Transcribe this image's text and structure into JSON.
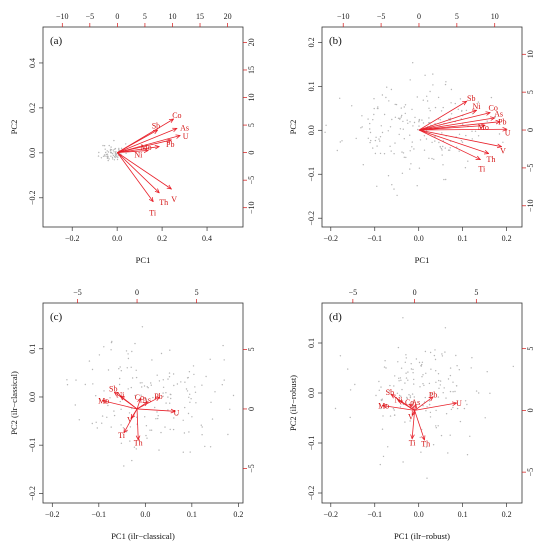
{
  "colors": {
    "arrow": "#e8212b",
    "points": "#b5b5b5",
    "frame": "#333333"
  },
  "chart_data": [
    {
      "type": "scatter",
      "panel_label": "(a)",
      "xlabel": "PC1",
      "ylabel": "PC2",
      "xlim": [
        -0.33,
        0.56
      ],
      "ylim": [
        -0.33,
        0.56
      ],
      "xticks": [
        -0.2,
        0.0,
        0.2,
        0.4
      ],
      "yticks": [
        -0.2,
        0.0,
        0.2,
        0.4
      ],
      "xtick_labels": [
        "−0.2",
        "0.0",
        "0.2",
        "0.4"
      ],
      "ytick_labels": [
        "−0.2",
        "0.0",
        "0.2",
        "0.4"
      ],
      "top_lim": [
        -13.5,
        22.8
      ],
      "right_lim": [
        -13.5,
        22.8
      ],
      "top_ticks": [
        -10,
        -5,
        0,
        5,
        10,
        15,
        20
      ],
      "right_ticks": [
        -10,
        -5,
        0,
        5,
        10,
        15,
        20
      ],
      "top_tick_labels": [
        "−10",
        "−5",
        "0",
        "5",
        "10",
        "15",
        "20"
      ],
      "right_tick_labels": [
        "−10",
        "−5",
        "0",
        "5",
        "10",
        "15",
        "20"
      ],
      "point_cloud": {
        "center": [
          -0.02,
          0.0
        ],
        "spread": [
          0.025,
          0.02
        ],
        "n": 70,
        "seed": 11
      },
      "loadings": [
        {
          "name": "Co",
          "x": 10.2,
          "y": 6.1,
          "lx": 10.8,
          "ly": 6.8
        },
        {
          "name": "As",
          "x": 10.8,
          "y": 4.4,
          "lx": 12.2,
          "ly": 4.6
        },
        {
          "name": "U",
          "x": 11.4,
          "y": 3.1,
          "lx": 12.4,
          "ly": 3.0
        },
        {
          "name": "Sb",
          "x": 7.3,
          "y": 4.1,
          "lx": 7.0,
          "ly": 4.9
        },
        {
          "name": "Pb",
          "x": 9.8,
          "y": 2.3,
          "lx": 9.6,
          "ly": 1.6
        },
        {
          "name": "Mo",
          "x": 7.6,
          "y": 1.1,
          "lx": 5.2,
          "ly": 1.0
        },
        {
          "name": "Ni",
          "x": 5.6,
          "y": 0.4,
          "lx": 3.8,
          "ly": -0.3
        },
        {
          "name": "Th",
          "x": 7.6,
          "y": -7.3,
          "lx": 8.4,
          "ly": -9.0
        },
        {
          "name": "V",
          "x": 9.8,
          "y": -6.6,
          "lx": 10.3,
          "ly": -8.4
        },
        {
          "name": "Ti",
          "x": 6.5,
          "y": -8.9,
          "lx": 6.4,
          "ly": -10.9
        }
      ]
    },
    {
      "type": "scatter",
      "panel_label": "(b)",
      "xlabel": "PC1",
      "ylabel": "PC2",
      "xlim": [
        -0.22,
        0.235
      ],
      "ylim": [
        -0.22,
        0.235
      ],
      "xticks": [
        -0.2,
        -0.1,
        0.0,
        0.1,
        0.2
      ],
      "yticks": [
        -0.2,
        -0.1,
        0.0,
        0.1,
        0.2
      ],
      "xtick_labels": [
        "−0.2",
        "−0.1",
        "0.0",
        "0.1",
        "0.2"
      ],
      "ytick_labels": [
        "−0.2",
        "−0.1",
        "0.0",
        "0.1",
        "0.2"
      ],
      "top_lim": [
        -12.8,
        13.6
      ],
      "right_lim": [
        -12.8,
        13.6
      ],
      "top_ticks": [
        -10,
        -5,
        0,
        5,
        10
      ],
      "right_ticks": [
        -10,
        -5,
        0,
        5,
        10
      ],
      "top_tick_labels": [
        "−10",
        "−5",
        "0",
        "5",
        "10"
      ],
      "right_tick_labels": [
        "−10",
        "−5",
        "0",
        "5",
        "10"
      ],
      "point_cloud": {
        "center": [
          -0.01,
          0.0
        ],
        "spread": [
          0.08,
          0.05
        ],
        "n": 200,
        "seed": 23
      },
      "loadings": [
        {
          "name": "Sb",
          "x": 6.3,
          "y": 3.8,
          "lx": 6.9,
          "ly": 4.2
        },
        {
          "name": "Ni",
          "x": 7.6,
          "y": 2.6,
          "lx": 7.6,
          "ly": 3.2
        },
        {
          "name": "Co",
          "x": 9.4,
          "y": 2.3,
          "lx": 9.8,
          "ly": 3.0
        },
        {
          "name": "As",
          "x": 10.0,
          "y": 1.6,
          "lx": 10.5,
          "ly": 2.2
        },
        {
          "name": "Pb",
          "x": 10.7,
          "y": 1.1,
          "lx": 11.0,
          "ly": 1.1
        },
        {
          "name": "Mo",
          "x": 8.7,
          "y": 0.6,
          "lx": 8.5,
          "ly": 0.4
        },
        {
          "name": "U",
          "x": 11.6,
          "y": 0.1,
          "lx": 11.7,
          "ly": -0.3
        },
        {
          "name": "V",
          "x": 10.9,
          "y": -2.2,
          "lx": 11.1,
          "ly": -2.7
        },
        {
          "name": "Th",
          "x": 9.2,
          "y": -3.1,
          "lx": 9.5,
          "ly": -3.8
        },
        {
          "name": "Ti",
          "x": 8.1,
          "y": -3.9,
          "lx": 8.3,
          "ly": -5.1
        }
      ]
    },
    {
      "type": "scatter",
      "panel_label": "(c)",
      "xlabel": "PC1 (ilr−classical)",
      "ylabel": "PC2 (ilr−classical)",
      "xlim": [
        -0.22,
        0.21
      ],
      "ylim": [
        -0.22,
        0.195
      ],
      "xticks": [
        -0.2,
        -0.1,
        0.0,
        0.1,
        0.2
      ],
      "yticks": [
        -0.2,
        -0.1,
        0.0,
        0.1
      ],
      "xtick_labels": [
        "−0.2",
        "−0.1",
        "0.0",
        "0.1",
        "0.2"
      ],
      "ytick_labels": [
        "−0.2",
        "−0.1",
        "0.0",
        "0.1"
      ],
      "top_lim": [
        -7.9,
        8.9
      ],
      "right_lim": [
        -7.9,
        8.9
      ],
      "top_ticks": [
        -5,
        0,
        5
      ],
      "right_ticks": [
        -5,
        0,
        5
      ],
      "top_tick_labels": [
        "−5",
        "0",
        "5"
      ],
      "right_tick_labels": [
        "−5",
        "0",
        "5"
      ],
      "point_cloud": {
        "center": [
          0.01,
          0.0
        ],
        "spread": [
          0.075,
          0.06
        ],
        "n": 160,
        "seed": 37
      },
      "loadings": [
        {
          "name": "Sb",
          "x": -1.9,
          "y": 1.4,
          "lx": -2.0,
          "ly": 1.7
        },
        {
          "name": "Ni",
          "x": -1.4,
          "y": 1.1,
          "lx": -1.4,
          "ly": 1.2
        },
        {
          "name": "Mo",
          "x": -2.9,
          "y": 0.7,
          "lx": -2.8,
          "ly": 0.7
        },
        {
          "name": "Co",
          "x": 0.3,
          "y": 0.9,
          "lx": 0.2,
          "ly": 1.0
        },
        {
          "name": "As",
          "x": 0.9,
          "y": 0.6,
          "lx": 0.8,
          "ly": 0.8
        },
        {
          "name": "Pb",
          "x": 1.9,
          "y": 1.0,
          "lx": 1.8,
          "ly": 1.1
        },
        {
          "name": "U",
          "x": 3.2,
          "y": -0.2,
          "lx": 3.3,
          "ly": -0.3
        },
        {
          "name": "V",
          "x": -0.5,
          "y": -0.8,
          "lx": -0.6,
          "ly": -0.9
        },
        {
          "name": "Ti",
          "x": -1.1,
          "y": -2.0,
          "lx": -1.3,
          "ly": -2.2
        },
        {
          "name": "Th",
          "x": 0.1,
          "y": -2.6,
          "lx": 0.1,
          "ly": -2.8
        }
      ]
    },
    {
      "type": "scatter",
      "panel_label": "(d)",
      "xlabel": "PC1 (ilr−robust)",
      "ylabel": "PC2 (ilr−robust)",
      "xlim": [
        -0.22,
        0.235
      ],
      "ylim": [
        -0.22,
        0.18
      ],
      "xticks": [
        -0.2,
        -0.1,
        0.0,
        0.1,
        0.2
      ],
      "yticks": [
        -0.2,
        -0.1,
        0.0,
        0.1
      ],
      "xtick_labels": [
        "−0.2",
        "−0.1",
        "0.0",
        "0.1",
        "0.2"
      ],
      "ytick_labels": [
        "−0.2",
        "−0.1",
        "0.0",
        "0.1"
      ],
      "top_lim": [
        -7.5,
        8.7
      ],
      "right_lim": [
        -7.5,
        8.7
      ],
      "top_ticks": [
        -5,
        0,
        5
      ],
      "right_ticks": [
        -5,
        0,
        5
      ],
      "top_tick_labels": [
        "−5",
        "0",
        "5"
      ],
      "right_tick_labels": [
        "−5",
        "0",
        "5"
      ],
      "point_cloud": {
        "center": [
          0.01,
          0.0
        ],
        "spread": [
          0.075,
          0.06
        ],
        "n": 160,
        "seed": 53
      },
      "loadings": [
        {
          "name": "Sb",
          "x": -1.9,
          "y": 1.3,
          "lx": -2.0,
          "ly": 1.5
        },
        {
          "name": "Ni",
          "x": -1.3,
          "y": 0.8,
          "lx": -1.3,
          "ly": 0.9
        },
        {
          "name": "Mo",
          "x": -2.6,
          "y": 0.4,
          "lx": -2.5,
          "ly": 0.4
        },
        {
          "name": "Co",
          "x": -0.4,
          "y": 0.5,
          "lx": -0.4,
          "ly": 0.7
        },
        {
          "name": "As",
          "x": 0.1,
          "y": 0.5,
          "lx": 0.1,
          "ly": 0.7
        },
        {
          "name": "Pb",
          "x": 1.5,
          "y": 1.1,
          "lx": 1.5,
          "ly": 1.3
        },
        {
          "name": "U",
          "x": 3.4,
          "y": 0.6,
          "lx": 3.6,
          "ly": 0.6
        },
        {
          "name": "V",
          "x": -0.2,
          "y": -0.4,
          "lx": -0.3,
          "ly": -0.5
        },
        {
          "name": "Ti",
          "x": -0.2,
          "y": -2.3,
          "lx": -0.2,
          "ly": -2.6
        },
        {
          "name": "Th",
          "x": 0.8,
          "y": -2.4,
          "lx": 0.9,
          "ly": -2.7
        }
      ]
    }
  ]
}
